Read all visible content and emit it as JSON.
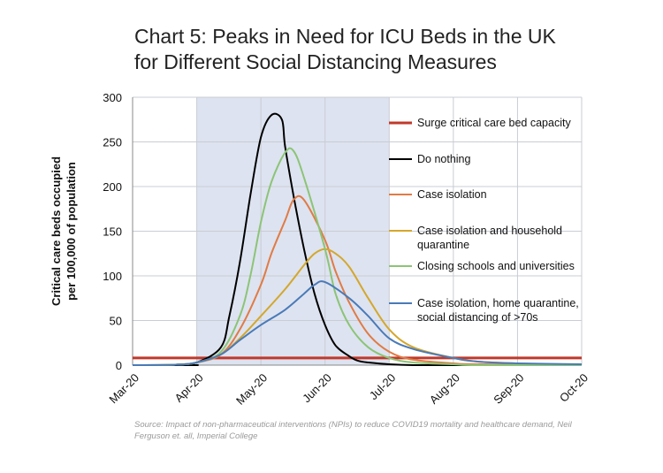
{
  "title_lines": [
    "Chart 5: Peaks in Need for ICU Beds in the UK",
    "for Different Social Distancing Measures"
  ],
  "source": "Source: Impact of non-pharmaceutical interventions (NPIs) to reduce COVID19 mortality and healthcare demand, Neil Ferguson et. all, Imperial College",
  "chart_data": {
    "type": "line",
    "title": "Chart 5: Peaks in Need for ICU Beds in the UK for Different Social Distancing Measures",
    "ylabel_lines": [
      "Critical care beds occupied",
      "per 100,000 of population"
    ],
    "xlabel": "",
    "x_ticks": [
      "Mar-20",
      "Apr-20",
      "May-20",
      "Jun-20",
      "Jul-20",
      "Aug-20",
      "Sep-20",
      "Oct-20"
    ],
    "xlim": [
      "Mar-20",
      "Oct-20"
    ],
    "ylim": [
      0,
      300
    ],
    "y_ticks": [
      0,
      50,
      100,
      150,
      200,
      250,
      300
    ],
    "grid": true,
    "shaded_period": [
      "Apr-20",
      "Jul-20"
    ],
    "shaded_color": "#dde3f0",
    "legend_position": "right",
    "series": [
      {
        "name": "Surge critical care bed capacity",
        "color": "#c0392b",
        "x": [
          "Mar-20",
          "Oct-20"
        ],
        "values": [
          8,
          8
        ]
      },
      {
        "name": "Do nothing",
        "color": "#000000",
        "x": [
          "Mar-20",
          "Apr-20",
          "Apr-10",
          "Apr-20",
          "May-01",
          "May-05",
          "May-10",
          "May-15",
          "May-20",
          "May-25",
          "May-30",
          "Jun-01",
          "Jun-05",
          "Jun-10",
          "Jun-15",
          "Jun-20",
          "Jun-25",
          "Jul-01",
          "Jul-05",
          "Jul-10",
          "Jul-20",
          "Aug-01",
          "Aug-20",
          "Oct-20"
        ],
        "values": [
          0,
          0,
          0.5,
          3,
          20,
          55,
          115,
          190,
          255,
          280,
          275,
          245,
          190,
          130,
          80,
          45,
          22,
          10,
          5,
          3,
          1,
          0,
          0,
          0
        ]
      },
      {
        "name": "Case isolation",
        "color": "#e07b45",
        "x": [
          "Mar-20",
          "Apr-10",
          "Apr-20",
          "May-01",
          "May-10",
          "May-20",
          "May-25",
          "Jun-01",
          "Jun-05",
          "Jun-10",
          "Jun-20",
          "Jun-25",
          "Jul-01",
          "Jul-10",
          "Jul-20",
          "Aug-01",
          "Aug-20",
          "Sep-01",
          "Oct-20"
        ],
        "values": [
          0,
          0.5,
          3,
          12,
          40,
          90,
          125,
          162,
          185,
          185,
          140,
          105,
          70,
          35,
          15,
          6,
          2,
          1,
          0
        ]
      },
      {
        "name": "Case isolation and household quarantine",
        "color": "#d4a72c",
        "x": [
          "Mar-20",
          "Apr-10",
          "Apr-20",
          "May-01",
          "May-10",
          "May-20",
          "Jun-01",
          "Jun-10",
          "Jun-15",
          "Jun-20",
          "Jun-25",
          "Jul-01",
          "Jul-10",
          "Jul-20",
          "Aug-01",
          "Aug-20",
          "Sep-01",
          "Sep-20",
          "Oct-20"
        ],
        "values": [
          0,
          0.5,
          3,
          12,
          30,
          55,
          85,
          112,
          125,
          130,
          125,
          110,
          75,
          40,
          20,
          8,
          4,
          2,
          0
        ]
      },
      {
        "name": "Closing schools and universities",
        "color": "#8cc476",
        "x": [
          "Mar-20",
          "Apr-10",
          "Apr-20",
          "May-01",
          "May-10",
          "May-15",
          "May-20",
          "May-25",
          "Jun-01",
          "Jun-05",
          "Jun-10",
          "Jun-20",
          "Jun-25",
          "Jul-01",
          "Jul-10",
          "Jul-20",
          "Aug-01",
          "Aug-20",
          "Sep-01",
          "Oct-20"
        ],
        "values": [
          0,
          0.5,
          3,
          15,
          55,
          100,
          160,
          205,
          238,
          240,
          210,
          130,
          80,
          45,
          20,
          8,
          3,
          1,
          0,
          0
        ]
      },
      {
        "name": "Case isolation, home quarantine, social distancing of >70s",
        "color": "#4a7ab8",
        "x": [
          "Mar-20",
          "Apr-10",
          "Apr-20",
          "May-01",
          "May-10",
          "May-20",
          "Jun-01",
          "Jun-10",
          "Jun-15",
          "Jun-20",
          "Jul-01",
          "Jul-10",
          "Jul-20",
          "Aug-01",
          "Aug-20",
          "Sep-01",
          "Sep-20",
          "Oct-20"
        ],
        "values": [
          0,
          0.5,
          3,
          12,
          28,
          45,
          62,
          80,
          90,
          93,
          75,
          55,
          30,
          18,
          8,
          4,
          2,
          1
        ]
      }
    ],
    "legend_lines": [
      [
        "Surge critical care bed capacity"
      ],
      [
        "Do nothing"
      ],
      [
        "Case isolation"
      ],
      [
        "Case isolation and household",
        "quarantine"
      ],
      [
        "Closing schools and universities"
      ],
      [
        "Case isolation, home quarantine,",
        "social distancing of >70s"
      ]
    ]
  }
}
